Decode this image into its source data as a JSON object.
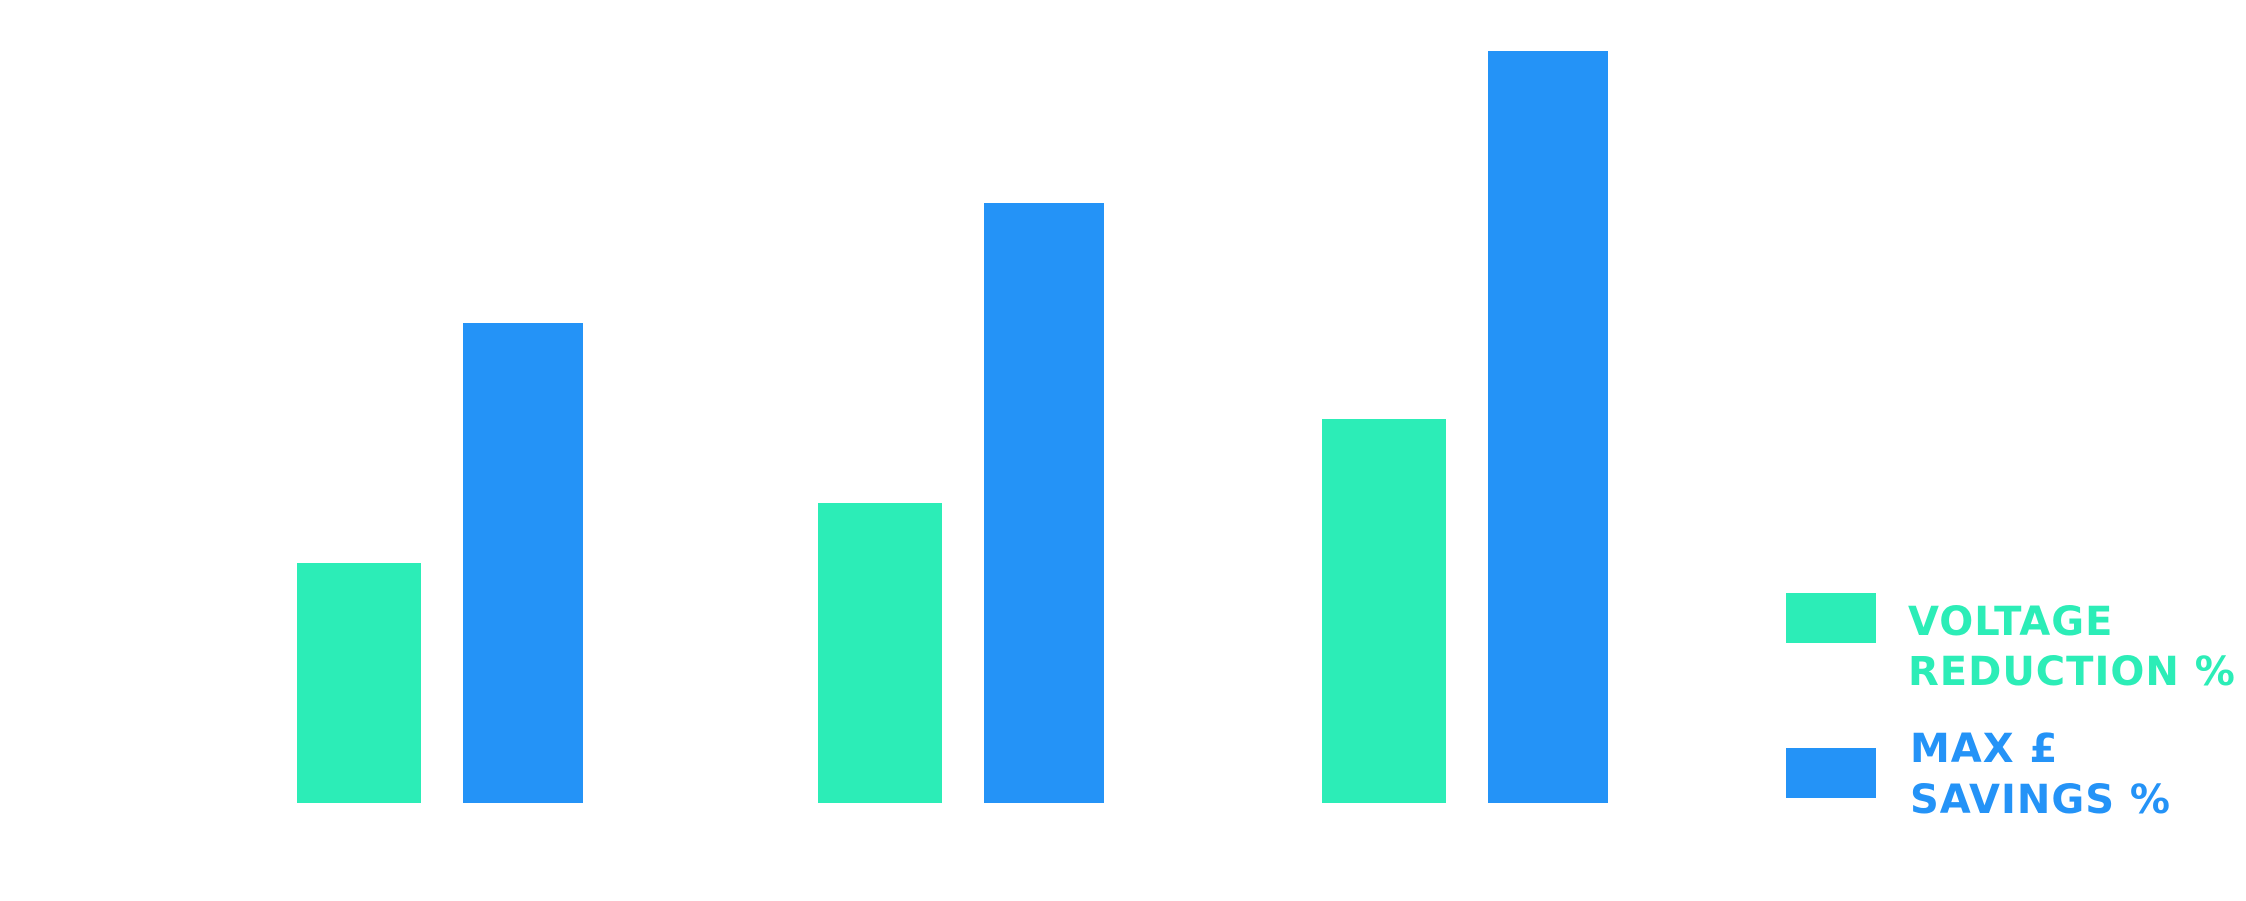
{
  "chart_data": {
    "type": "bar",
    "categories": [
      "",
      "",
      ""
    ],
    "series": [
      {
        "name": "VOLTAGE REDUCTION %",
        "legend_lines": [
          "VOLTAGE",
          "REDUCTION %"
        ],
        "color": "#2CEDB7",
        "values": [
          3.0,
          3.75,
          4.8
        ]
      },
      {
        "name": "MAX £ SAVINGS %",
        "legend_lines": [
          "MAX £",
          "SAVINGS %"
        ],
        "color": "#2493F7",
        "values": [
          6.0,
          7.5,
          9.4
        ]
      }
    ],
    "ylim": [
      0,
      10
    ],
    "grid": false,
    "axes_visible": false,
    "legend_position": "right",
    "title": "",
    "xlabel": "",
    "ylabel": ""
  }
}
